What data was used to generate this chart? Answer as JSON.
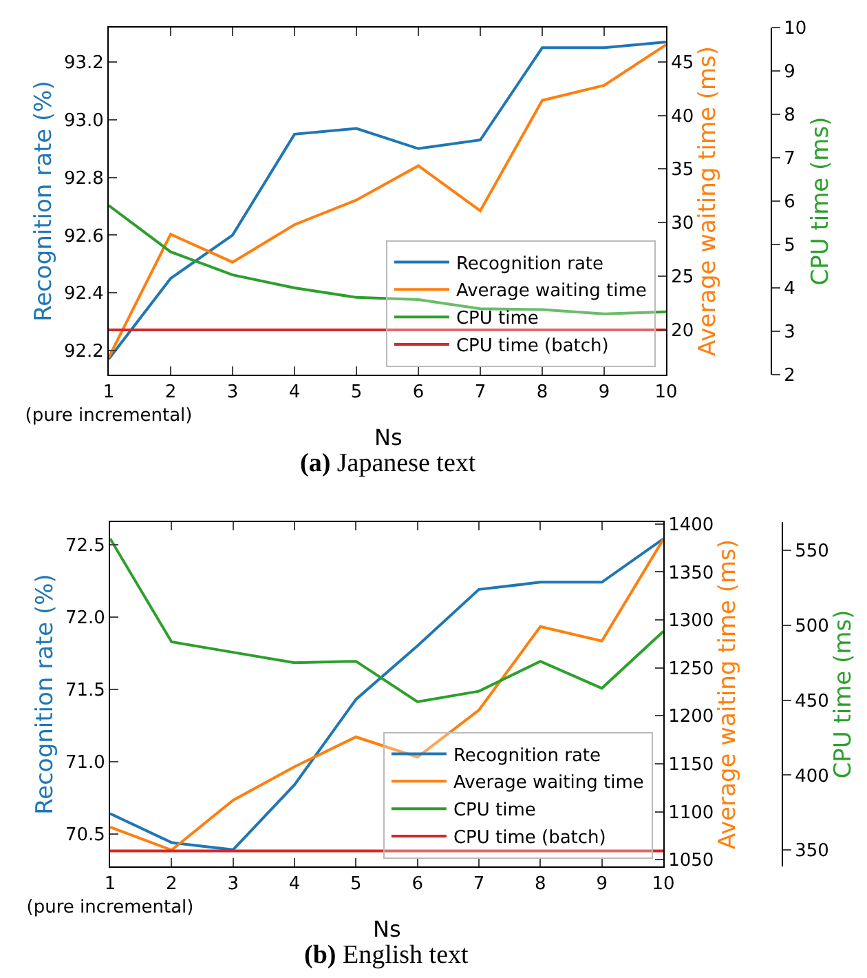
{
  "chart_data": [
    {
      "type": "line",
      "title": "(a) Japanese text",
      "xlabel": "Ns",
      "ylabel": "Recognition rate (%)",
      "y2label": "Average waiting time (ms)",
      "y3label": "CPU time (ms)",
      "x": [
        1,
        2,
        3,
        4,
        5,
        6,
        7,
        8,
        9,
        10
      ],
      "xlim": [
        1,
        10
      ],
      "xticks": [
        {
          "value": 1,
          "label": "1\n(pure incremental)"
        },
        2,
        3,
        4,
        5,
        6,
        7,
        8,
        9,
        10
      ],
      "ylim": [
        92.116,
        93.32
      ],
      "yticks": [
        92.2,
        92.4,
        92.6,
        92.8,
        {
          "value": 93,
          "label": "93.0"
        },
        93.2
      ],
      "y2lim": [
        15.8,
        48.2
      ],
      "y2ticks": [
        20,
        25,
        30,
        35,
        40,
        45
      ],
      "y3lim": [
        2,
        10
      ],
      "y3ticks": [
        2,
        3,
        4,
        5,
        6,
        7,
        8,
        9,
        10
      ],
      "legend": "bottom right",
      "ref_lines": [
        {
          "axis": "y3",
          "value": 3.03,
          "label": "CPU time (batch)",
          "color": "#d62728"
        }
      ],
      "series": [
        {
          "name": "Recognition rate",
          "color": "#1f77b4",
          "values": [
            92.17,
            92.45,
            92.6,
            92.95,
            92.97,
            92.9,
            92.93,
            93.25,
            93.25,
            93.27
          ]
        },
        {
          "name": "Average waiting time",
          "color": "#ff7f0e",
          "axis": "y2",
          "values": [
            17.4,
            28.9,
            26.3,
            29.8,
            32.1,
            35.3,
            31.1,
            41.4,
            42.8,
            46.6
          ]
        },
        {
          "name": "CPU time",
          "color": "#2ca02c",
          "axis": "y3",
          "values": [
            5.9,
            4.83,
            4.3,
            4.0,
            3.78,
            3.73,
            3.52,
            3.5,
            3.4,
            3.45
          ]
        }
      ]
    },
    {
      "type": "line",
      "title": "(b) English text",
      "xlabel": "Ns",
      "ylabel": "Recognition rate (%)",
      "y2label": "Average waiting time (ms)",
      "y3label": "CPU time (ms)",
      "x": [
        1,
        2,
        3,
        4,
        5,
        6,
        7,
        8,
        9,
        10
      ],
      "xlim": [
        1,
        10
      ],
      "xticks": [
        {
          "value": 1,
          "label": "1\n(pure incremental)"
        },
        2,
        3,
        4,
        5,
        6,
        7,
        8,
        9,
        10
      ],
      "ylim": [
        70.275,
        72.656
      ],
      "yticks": [
        70.5,
        {
          "value": 71,
          "label": "71.0"
        },
        71.5,
        {
          "value": 72,
          "label": "72.0"
        },
        72.5
      ],
      "y2lim": [
        1043,
        1402
      ],
      "y2ticks": [
        1050,
        1100,
        1150,
        1200,
        1250,
        1300,
        1350,
        1400
      ],
      "y3lim": [
        339,
        569
      ],
      "y3ticks": [
        350,
        400,
        450,
        500,
        550
      ],
      "legend": "bottom right",
      "ref_lines": [
        {
          "axis": "y3",
          "value": 349.3,
          "label": "CPU time (batch)",
          "color": "#d62728"
        }
      ],
      "series": [
        {
          "name": "Recognition rate",
          "color": "#1f77b4",
          "values": [
            70.64,
            70.44,
            70.39,
            70.84,
            71.43,
            71.8,
            72.19,
            72.24,
            72.24,
            72.54
          ]
        },
        {
          "name": "Average waiting time",
          "color": "#ff7f0e",
          "axis": "y2",
          "values": [
            1084,
            1060,
            1112,
            1147,
            1178,
            1157,
            1206,
            1293,
            1278,
            1384
          ]
        },
        {
          "name": "CPU time",
          "color": "#2ca02c",
          "axis": "y3",
          "values": [
            558,
            489,
            482,
            475,
            476,
            449,
            456,
            476,
            458,
            496
          ]
        }
      ]
    }
  ]
}
